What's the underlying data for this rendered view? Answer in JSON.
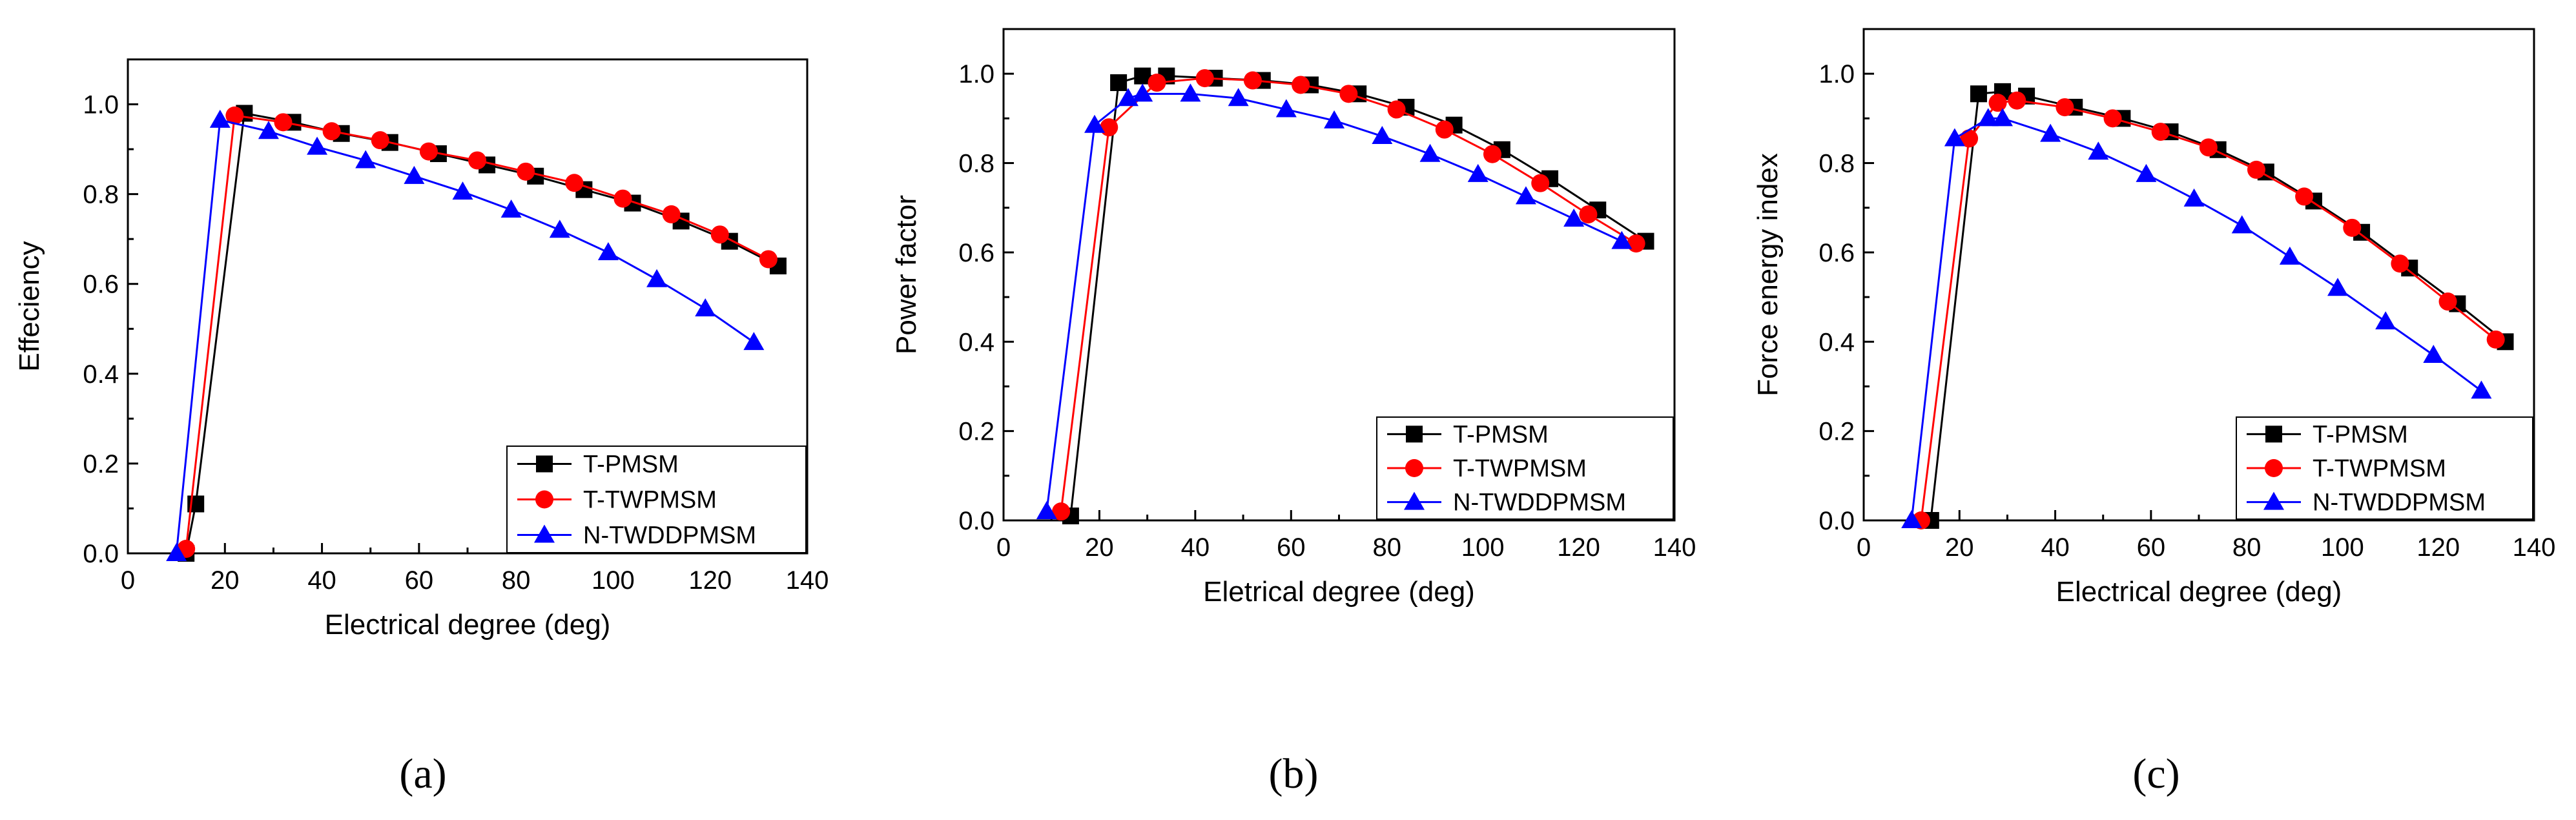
{
  "figure": {
    "panel_labels": [
      "(a)",
      "(b)",
      "(c)"
    ]
  },
  "colors": {
    "T-PMSM": "#000000",
    "T-TWPMSM": "#ff0000",
    "N-TWDDPMSM": "#0000ff"
  },
  "chart_data": [
    {
      "type": "line",
      "panel": "(a)",
      "title": "",
      "xlabel": "Electrical degree (deg)",
      "ylabel": "Effeciency",
      "xlim": [
        0,
        140
      ],
      "ylim": [
        0,
        1.1
      ],
      "xticks": [
        0,
        20,
        40,
        60,
        80,
        100,
        120,
        140
      ],
      "yticks": [
        0.0,
        0.2,
        0.4,
        0.6,
        0.8,
        1.0
      ],
      "xtick_labels": [
        "0",
        "20",
        "40",
        "60",
        "80",
        "100",
        "120",
        "140"
      ],
      "ytick_labels": [
        "0.0",
        "0.2",
        "0.4",
        "0.6",
        "0.8",
        "1.0"
      ],
      "legend_position": "bottom-right",
      "series": [
        {
          "name": "T-PMSM",
          "marker": "square",
          "x": [
            12,
            14,
            24,
            34,
            44,
            54,
            64,
            74,
            84,
            94,
            104,
            114,
            124,
            134
          ],
          "y": [
            0,
            0.11,
            0.98,
            0.96,
            0.935,
            0.915,
            0.89,
            0.865,
            0.84,
            0.81,
            0.78,
            0.74,
            0.695,
            0.64
          ]
        },
        {
          "name": "T-TWPMSM",
          "marker": "circle",
          "x": [
            12,
            22,
            32,
            42,
            52,
            62,
            72,
            82,
            92,
            102,
            112,
            122,
            132
          ],
          "y": [
            0.01,
            0.975,
            0.96,
            0.94,
            0.92,
            0.895,
            0.875,
            0.85,
            0.825,
            0.79,
            0.755,
            0.71,
            0.655
          ]
        },
        {
          "name": "N-TWDDPMSM",
          "marker": "triangle",
          "x": [
            10,
            19,
            29,
            39,
            49,
            59,
            69,
            79,
            89,
            99,
            109,
            119,
            129
          ],
          "y": [
            0,
            0.965,
            0.94,
            0.905,
            0.875,
            0.84,
            0.805,
            0.765,
            0.72,
            0.67,
            0.61,
            0.545,
            0.47
          ]
        }
      ]
    },
    {
      "type": "line",
      "panel": "(b)",
      "title": "",
      "xlabel": "Eletrical degree (deg)",
      "ylabel": "Power factor",
      "xlim": [
        0,
        140
      ],
      "ylim": [
        0,
        1.1
      ],
      "xticks": [
        0,
        20,
        40,
        60,
        80,
        100,
        120,
        140
      ],
      "yticks": [
        0.0,
        0.2,
        0.4,
        0.6,
        0.8,
        1.0
      ],
      "xtick_labels": [
        "0",
        "20",
        "40",
        "60",
        "80",
        "100",
        "120",
        "140"
      ],
      "ytick_labels": [
        "0.0",
        "0.2",
        "0.4",
        "0.6",
        "0.8",
        "1.0"
      ],
      "legend_position": "bottom-right",
      "series": [
        {
          "name": "T-PMSM",
          "marker": "square",
          "x": [
            14,
            24,
            29,
            34,
            44,
            54,
            64,
            74,
            84,
            94,
            104,
            114,
            124,
            134
          ],
          "y": [
            0.01,
            0.98,
            0.995,
            0.995,
            0.99,
            0.985,
            0.975,
            0.955,
            0.925,
            0.885,
            0.83,
            0.765,
            0.695,
            0.625
          ]
        },
        {
          "name": "T-TWPMSM",
          "marker": "circle",
          "x": [
            12,
            22,
            32,
            42,
            52,
            62,
            72,
            82,
            92,
            102,
            112,
            122,
            132
          ],
          "y": [
            0.02,
            0.88,
            0.98,
            0.99,
            0.985,
            0.975,
            0.955,
            0.92,
            0.875,
            0.82,
            0.755,
            0.685,
            0.62
          ]
        },
        {
          "name": "N-TWDDPMSM",
          "marker": "triangle",
          "x": [
            9,
            19,
            26,
            29,
            39,
            49,
            59,
            69,
            79,
            89,
            99,
            109,
            119,
            129
          ],
          "y": [
            0.02,
            0.885,
            0.945,
            0.955,
            0.955,
            0.945,
            0.92,
            0.895,
            0.86,
            0.82,
            0.775,
            0.725,
            0.675,
            0.625
          ]
        }
      ]
    },
    {
      "type": "line",
      "panel": "(c)",
      "title": "",
      "xlabel": "Electrical degree (deg)",
      "ylabel": "Force energy index",
      "xlim": [
        0,
        140
      ],
      "ylim": [
        0,
        1.1
      ],
      "xticks": [
        0,
        20,
        40,
        60,
        80,
        100,
        120,
        140
      ],
      "yticks": [
        0.0,
        0.2,
        0.4,
        0.6,
        0.8,
        1.0
      ],
      "xtick_labels": [
        "0",
        "20",
        "40",
        "60",
        "80",
        "100",
        "120",
        "140"
      ],
      "ytick_labels": [
        "0.0",
        "0.2",
        "0.4",
        "0.6",
        "0.8",
        "1.0"
      ],
      "legend_position": "bottom-right",
      "series": [
        {
          "name": "T-PMSM",
          "marker": "square",
          "x": [
            14,
            24,
            29,
            34,
            44,
            54,
            64,
            74,
            84,
            94,
            104,
            114,
            124,
            134
          ],
          "y": [
            0,
            0.955,
            0.96,
            0.95,
            0.925,
            0.9,
            0.87,
            0.83,
            0.78,
            0.715,
            0.645,
            0.565,
            0.485,
            0.4
          ]
        },
        {
          "name": "T-TWPMSM",
          "marker": "circle",
          "x": [
            12,
            22,
            28,
            32,
            42,
            52,
            62,
            72,
            82,
            92,
            102,
            112,
            122,
            132
          ],
          "y": [
            0,
            0.855,
            0.935,
            0.94,
            0.925,
            0.9,
            0.87,
            0.835,
            0.785,
            0.725,
            0.655,
            0.575,
            0.49,
            0.405
          ]
        },
        {
          "name": "N-TWDDPMSM",
          "marker": "triangle",
          "x": [
            10,
            19,
            26,
            29,
            39,
            49,
            59,
            69,
            79,
            89,
            99,
            109,
            119,
            129
          ],
          "y": [
            0,
            0.855,
            0.9,
            0.9,
            0.865,
            0.825,
            0.775,
            0.72,
            0.66,
            0.59,
            0.52,
            0.445,
            0.37,
            0.29
          ]
        }
      ]
    }
  ]
}
